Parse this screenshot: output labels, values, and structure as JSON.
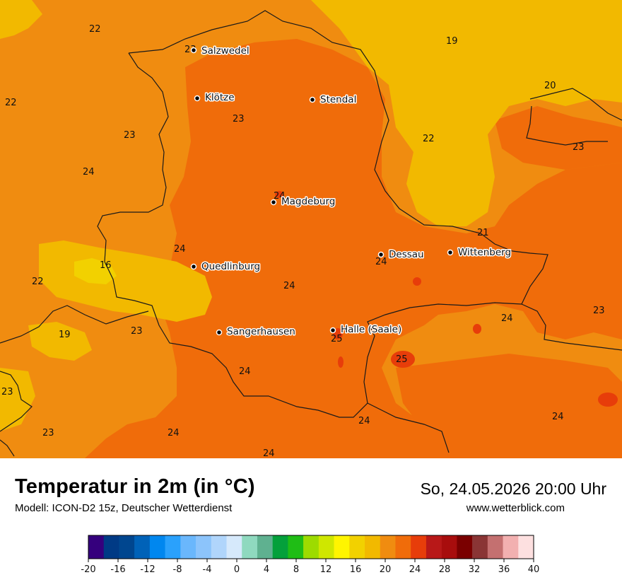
{
  "header": {
    "title": "Temperatur in 2m (in °C)",
    "model": "Modell: ICON-D2 15z, Deutscher Wetterdienst",
    "datetime": "So, 24.05.2026 20:00 Uhr",
    "website": "www.wetterblick.com"
  },
  "cities": [
    {
      "name": "Salzwedel"
    },
    {
      "name": "Klötze"
    },
    {
      "name": "Stendal"
    },
    {
      "name": "Magdeburg"
    },
    {
      "name": "Dessau"
    },
    {
      "name": "Wittenberg"
    },
    {
      "name": "Quedlinburg"
    },
    {
      "name": "Sangerhausen"
    },
    {
      "name": "Halle (Saale)"
    }
  ],
  "temperature_values": [
    "22",
    "23",
    "19",
    "22",
    "20",
    "23",
    "23",
    "22",
    "23",
    "24",
    "21",
    "24",
    "16",
    "22",
    "24",
    "24",
    "23",
    "19",
    "23",
    "24",
    "25",
    "25",
    "23",
    "24",
    "23",
    "24",
    "24",
    "24"
  ],
  "legend": {
    "colors": [
      "#35007d",
      "#003a85",
      "#00468f",
      "#0062b8",
      "#0087ef",
      "#2aa1fc",
      "#6ab7fc",
      "#8cc4fb",
      "#b0d5fb",
      "#d6e9fb",
      "#8fd9bf",
      "#5fb190",
      "#04a03b",
      "#1fbd15",
      "#9ddb00",
      "#cfe700",
      "#fff500",
      "#f2d100",
      "#f2b900",
      "#f08c10",
      "#f06c0a",
      "#e73d0a",
      "#b81818",
      "#a80d0d",
      "#7a0000",
      "#8a3535",
      "#c47070",
      "#f2b0b0",
      "#fde0e0"
    ],
    "tick_labels": [
      "-20",
      "-16",
      "-12",
      "-8",
      "-4",
      "0",
      "4",
      "8",
      "12",
      "16",
      "20",
      "24",
      "28",
      "32",
      "36",
      "40"
    ],
    "accent": "#f06c0a"
  }
}
